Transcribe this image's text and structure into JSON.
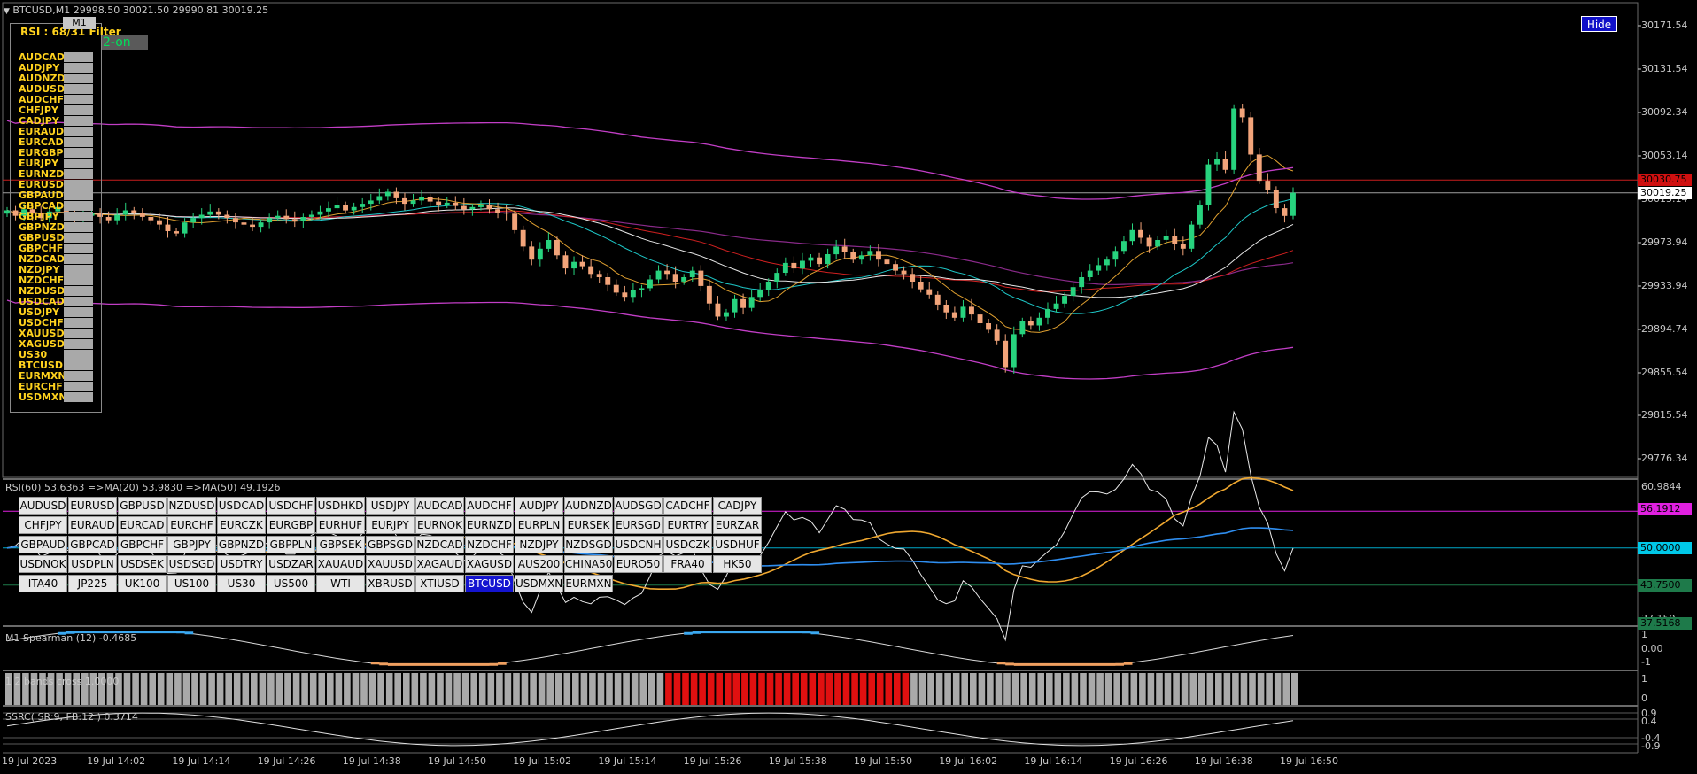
{
  "symbol_header": {
    "title": "BTCUSD,M1  29998.50 30021.50 29990.81 30019.25"
  },
  "toolbar": {
    "hide_label": "Hide"
  },
  "scanner": {
    "title": "RSI : 68/31 Filter",
    "timeframe": "M1",
    "badge": "2-on",
    "symbols": [
      "AUDCAD",
      "AUDJPY",
      "AUDNZD",
      "AUDUSD",
      "AUDCHF",
      "CHFJPY",
      "CADJPY",
      "EURAUD",
      "EURCAD",
      "EURGBP",
      "EURJPY",
      "EURNZD",
      "EURUSD",
      "GBPAUD",
      "GBPCAD",
      "GBPJPY",
      "GBPNZD",
      "GBPUSD",
      "GBPCHF",
      "NZDCAD",
      "NZDJPY",
      "NZDCHF",
      "NZDUSD",
      "USDCAD",
      "USDJPY",
      "USDCHF",
      "XAUUSD",
      "XAGUSD",
      "US30",
      "BTCUSD",
      "EURMXN",
      "EURCHF",
      "USDMXN"
    ]
  },
  "price_axis": {
    "ticks": [
      "30171.54",
      "30131.54",
      "30092.34",
      "30053.14",
      "30013.14",
      "29973.94",
      "29933.94",
      "29894.74",
      "29855.54",
      "29815.54",
      "29776.34"
    ],
    "tags": {
      "resistance": "30030.75",
      "current": "30019.25"
    }
  },
  "rsi_pane": {
    "label": "RSI(60) 53.6363  =>MA(20) 53.9830  =>MA(50) 49.1926",
    "axis_ticks": [
      "60.9844",
      "37.159"
    ],
    "levels": {
      "upper": "56.1912",
      "mid": "50.0000",
      "lower": "43.7500",
      "bottom": "37.5168"
    }
  },
  "spearman_pane": {
    "label": "M1 Spearman (12) -0.4685",
    "axis_ticks": [
      "1",
      "0.00",
      "-1"
    ]
  },
  "bands_pane": {
    "label": "1 2 bands cross 1.0000",
    "axis_ticks": [
      "1",
      "0"
    ]
  },
  "ssrc_pane": {
    "label": "SSRC( SR:9, FB:12 ) 0.3714",
    "axis_ticks": [
      "0.9",
      "0.4",
      "-0.4",
      "-0.9"
    ]
  },
  "time_axis": {
    "ticks": [
      "19 Jul 2023",
      "19 Jul 14:02",
      "19 Jul 14:14",
      "19 Jul 14:26",
      "19 Jul 14:38",
      "19 Jul 14:50",
      "19 Jul 15:02",
      "19 Jul 15:14",
      "19 Jul 15:26",
      "19 Jul 15:38",
      "19 Jul 15:50",
      "19 Jul 16:02",
      "19 Jul 16:14",
      "19 Jul 16:26",
      "19 Jul 16:38",
      "19 Jul 16:50"
    ]
  },
  "pair_grid": {
    "rows": [
      [
        "AUDUSD",
        "EURUSD",
        "GBPUSD",
        "NZDUSD",
        "USDCAD",
        "USDCHF",
        "USDHKD",
        "USDJPY",
        "AUDCAD",
        "AUDCHF",
        "AUDJPY",
        "AUDNZD",
        "AUDSGD",
        "CADCHF",
        "CADJPY"
      ],
      [
        "CHFJPY",
        "EURAUD",
        "EURCAD",
        "EURCHF",
        "EURCZK",
        "EURGBP",
        "EURHUF",
        "EURJPY",
        "EURNOK",
        "EURNZD",
        "EURPLN",
        "EURSEK",
        "EURSGD",
        "EURTRY",
        "EURZAR"
      ],
      [
        "GBPAUD",
        "GBPCAD",
        "GBPCHF",
        "GBPJPY",
        "GBPNZD",
        "GBPPLN",
        "GBPSEK",
        "GBPSGD",
        "NZDCAD",
        "NZDCHF",
        "NZDJPY",
        "NZDSGD",
        "USDCNH",
        "USDCZK",
        "USDHUF"
      ],
      [
        "USDNOK",
        "USDPLN",
        "USDSEK",
        "USDSGD",
        "USDTRY",
        "USDZAR",
        "XAUAUD",
        "XAUUSD",
        "XAGAUD",
        "XAGUSD",
        "AUS200",
        "CHINA50",
        "EURO50",
        "FRA40",
        "HK50"
      ],
      [
        "ITA40",
        "JP225",
        "UK100",
        "US100",
        "US30",
        "US500",
        "WTI",
        "XBRUSD",
        "XTIUSD",
        "BTCUSD",
        "USDMXN",
        "EURMXN"
      ]
    ],
    "active": "BTCUSD"
  },
  "colors": {
    "background": "#000000",
    "bull_candle": "#27d37e",
    "bear_candle": "#f2a47a",
    "band": "#c23ec6",
    "resistance_line": "#c81e1e",
    "rsi_ma20": "#f0a830",
    "rsi_ma50": "#2f8ef0",
    "spearman_up": "#3aa8f0",
    "spearman_down": "#f0a060",
    "cross_active": "#e01010",
    "cross_idle": "#a9a9a9"
  },
  "chart_data": {
    "type": "candlestick",
    "symbol": "BTCUSD",
    "timeframe": "M1",
    "ohlc_last": {
      "open": 29998.5,
      "high": 30021.5,
      "low": 29990.81,
      "close": 30019.25
    },
    "ylim": [
      29776.34,
      30171.54
    ],
    "resistance": 30030.75,
    "close_series": [
      30003,
      29998,
      30004,
      30000,
      29996,
      30002,
      30006,
      29999,
      29995,
      29998,
      30001,
      29997,
      29994,
      29999,
      30003,
      30001,
      29997,
      29994,
      29990,
      29984,
      29982,
      29992,
      29996,
      29999,
      30002,
      29999,
      29996,
      29992,
      29990,
      29988,
      29992,
      29996,
      29998,
      29995,
      29993,
      29997,
      29999,
      30002,
      30005,
      30008,
      30003,
      30006,
      30009,
      30012,
      30016,
      30020,
      30014,
      30009,
      30012,
      30015,
      30011,
      30008,
      30010,
      30007,
      30004,
      30006,
      30008,
      30004,
      30001,
      30000,
      29985,
      29970,
      29958,
      29968,
      29976,
      29962,
      29950,
      29956,
      29952,
      29945,
      29942,
      29935,
      29928,
      29924,
      29930,
      29932,
      29940,
      29948,
      29945,
      29938,
      29942,
      29948,
      29934,
      29918,
      29906,
      29910,
      29922,
      29914,
      29924,
      29930,
      29938,
      29946,
      29955,
      29950,
      29957,
      29960,
      29954,
      29963,
      29970,
      29965,
      29958,
      29962,
      29966,
      29958,
      29954,
      29948,
      29945,
      29938,
      29931,
      29926,
      29917,
      29910,
      29905,
      29915,
      29908,
      29900,
      29894,
      29884,
      29860,
      29890,
      29902,
      29898,
      29905,
      29913,
      29918,
      29925,
      29933,
      29942,
      29948,
      29953,
      29958,
      29966,
      29975,
      29985,
      29978,
      29970,
      29976,
      29980,
      29972,
      29968,
      29990,
      30008,
      30045,
      30050,
      30040,
      30096,
      30088,
      30054,
      30030,
      30022,
      30005,
      29998,
      30019
    ],
    "series": [
      {
        "name": "RSI(60)",
        "last": 53.6363
      },
      {
        "name": "MA(20)",
        "last": 53.983
      },
      {
        "name": "MA(50)",
        "last": 49.1926
      },
      {
        "name": "Spearman (12)",
        "last": -0.4685
      },
      {
        "name": "bands cross",
        "last": 1.0
      },
      {
        "name": "SSRC",
        "last": 0.3714
      }
    ]
  }
}
